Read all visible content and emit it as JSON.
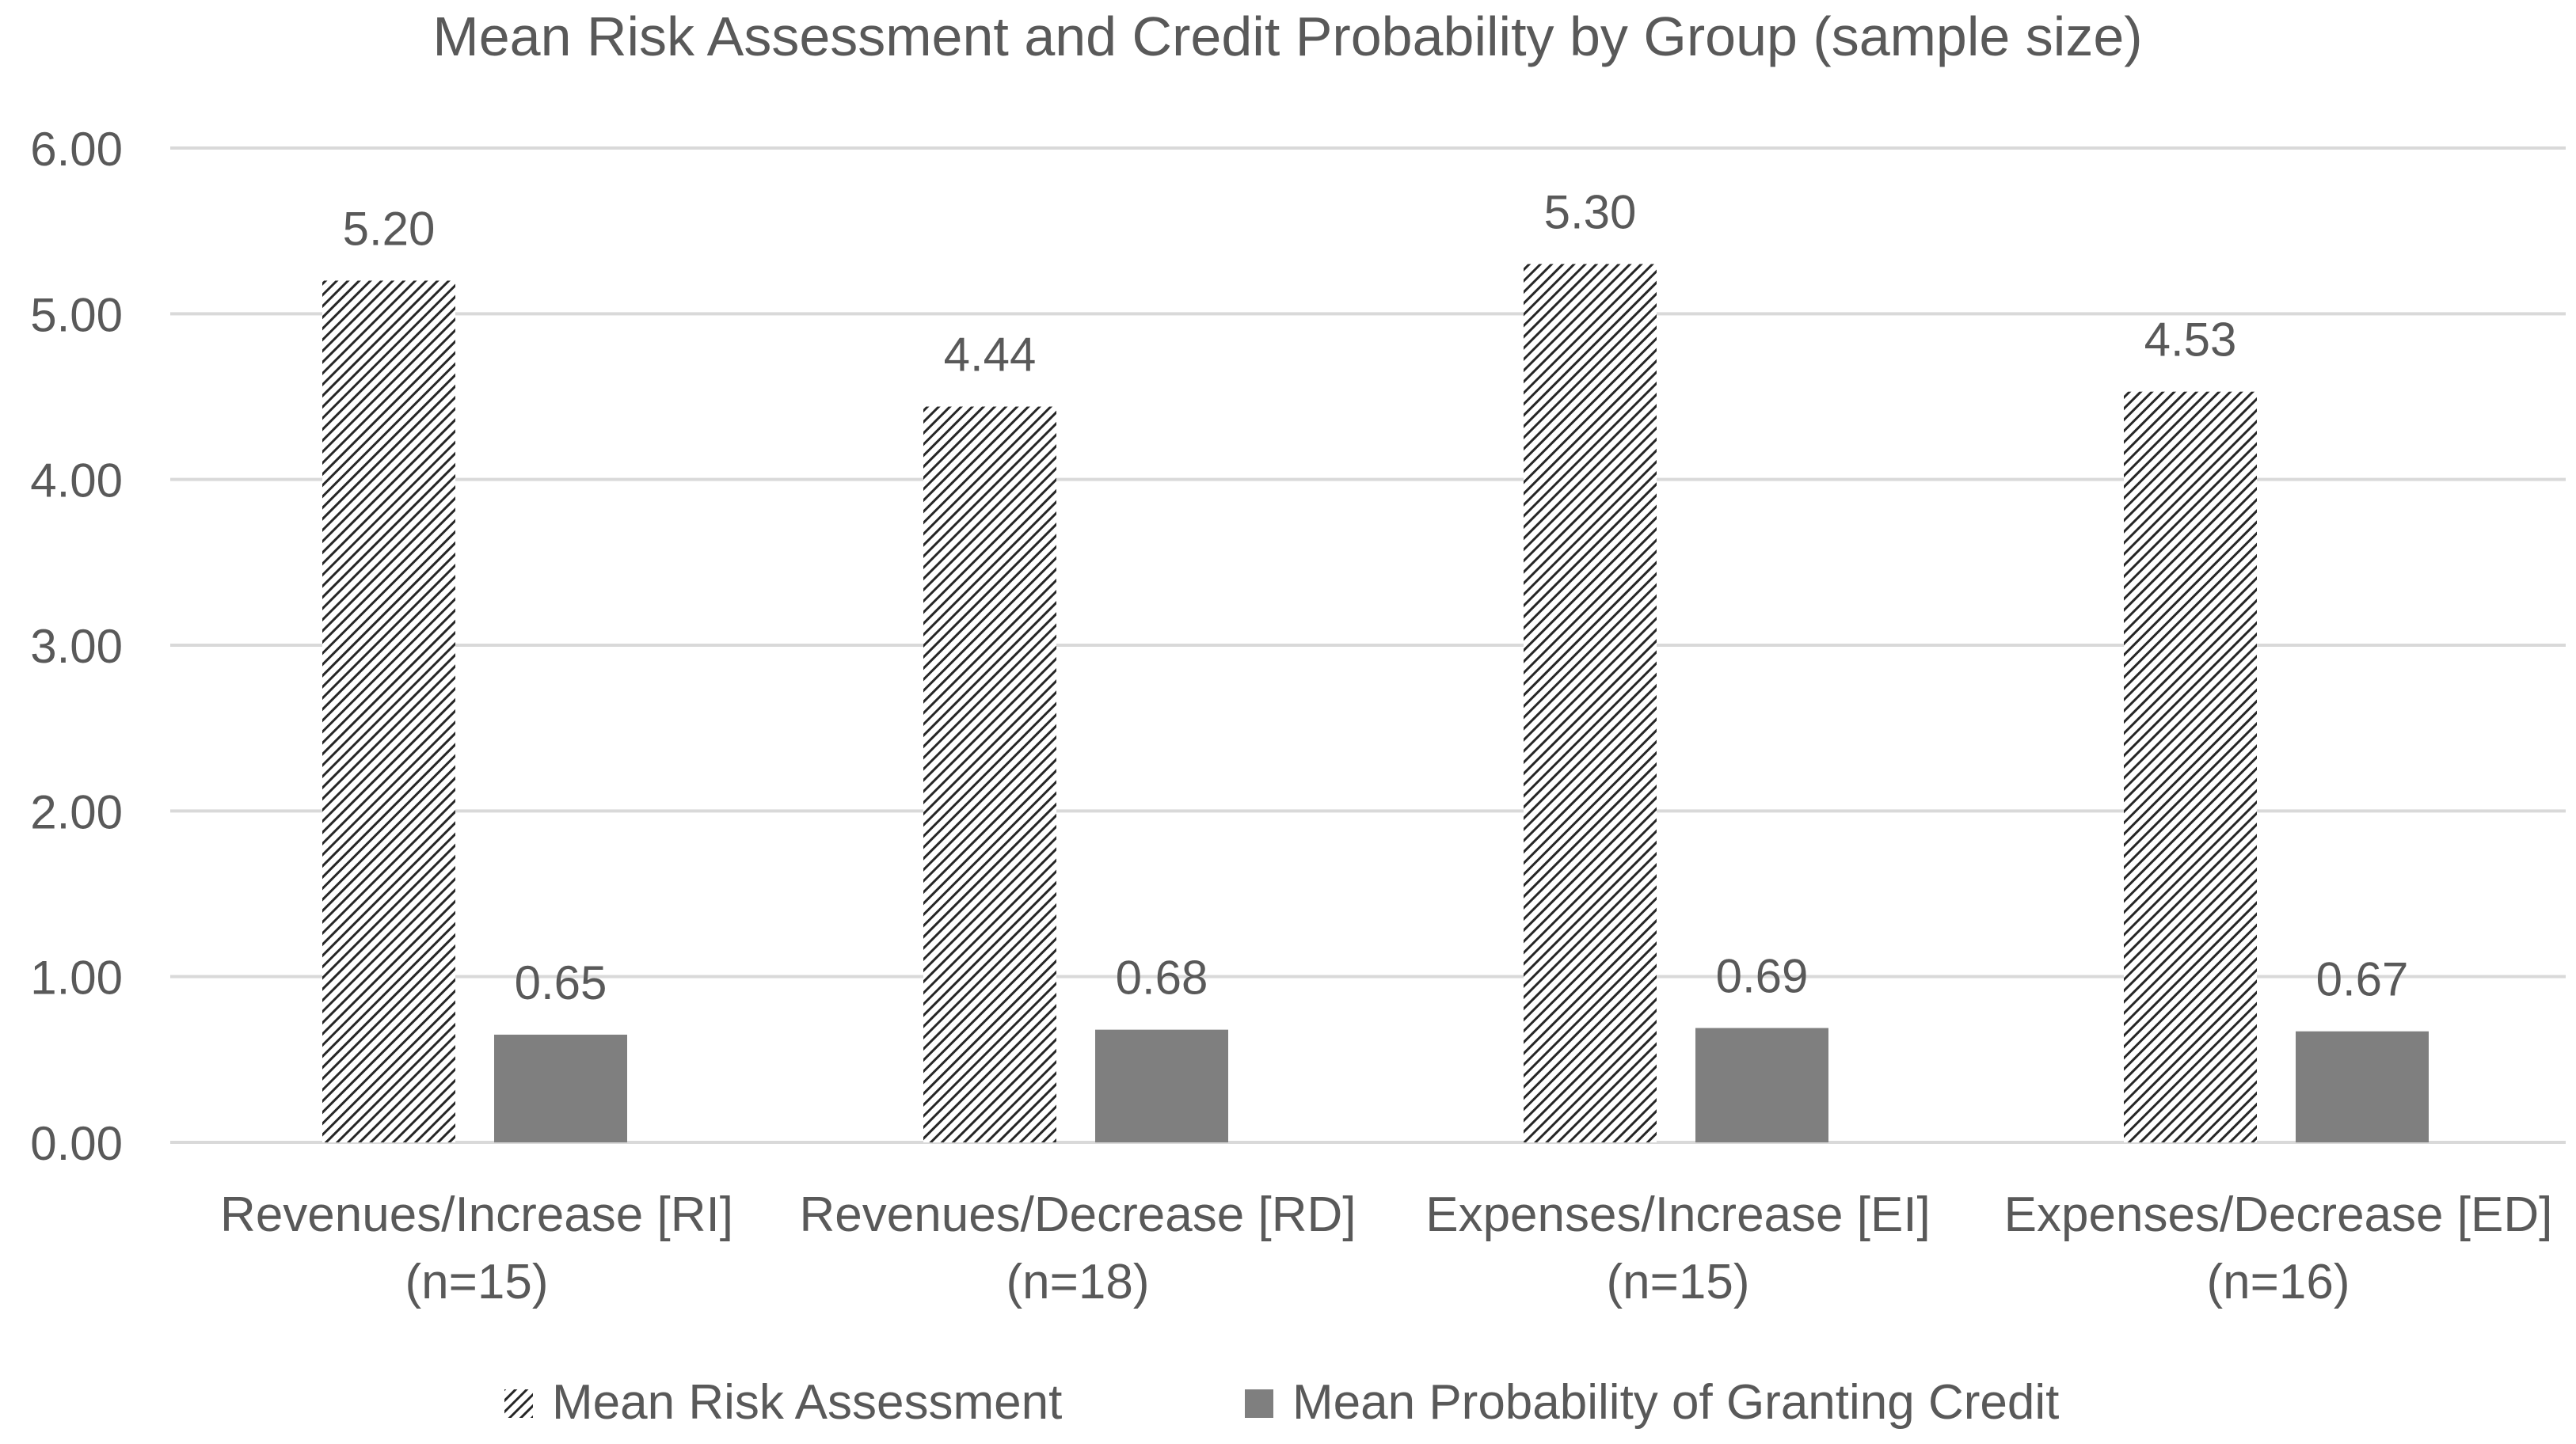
{
  "chart_data": {
    "type": "bar",
    "title": "Mean Risk Assessment and Credit Probability by Group (sample size)",
    "categories": [
      [
        "Revenues/Increase [RI]",
        "(n=15)"
      ],
      [
        "Revenues/Decrease [RD]",
        "(n=18)"
      ],
      [
        "Expenses/Increase [EI]",
        "(n=15)"
      ],
      [
        "Expenses/Decrease [ED]",
        "(n=16)"
      ]
    ],
    "series": [
      {
        "name": "Mean Risk Assessment",
        "values": [
          5.2,
          4.44,
          5.3,
          4.53
        ],
        "labels": [
          "5.20",
          "4.44",
          "5.30",
          "4.53"
        ],
        "style": "hatched"
      },
      {
        "name": "Mean Probability of Granting Credit",
        "values": [
          0.65,
          0.68,
          0.69,
          0.67
        ],
        "labels": [
          "0.65",
          "0.68",
          "0.69",
          "0.67"
        ],
        "style": "solid"
      }
    ],
    "ylim": [
      0,
      6
    ],
    "yticks": [
      "0.00",
      "1.00",
      "2.00",
      "3.00",
      "4.00",
      "5.00",
      "6.00"
    ],
    "xlabel": "",
    "ylabel": "",
    "grid": true,
    "legend": "bottom-center"
  },
  "colors": {
    "solid_bar": "#7f7f7f",
    "hatch_line": "#262626",
    "gridline": "#d9d9d9",
    "text": "#595959"
  }
}
